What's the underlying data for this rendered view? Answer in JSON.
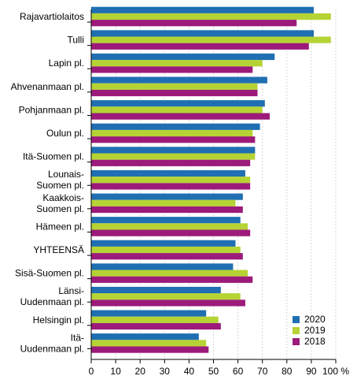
{
  "chart_data": {
    "type": "bar",
    "orientation": "horizontal",
    "categories": [
      [
        "Rajavartiolaitos"
      ],
      [
        "Tulli"
      ],
      [
        "Lapin pl."
      ],
      [
        "Ahvenanmaan pl."
      ],
      [
        "Pohjanmaan pl."
      ],
      [
        "Oulun pl."
      ],
      [
        "Itä-Suomen pl."
      ],
      [
        "Lounais-",
        "Suomen pl."
      ],
      [
        "Kaakkois-",
        "Suomen pl."
      ],
      [
        "Hämeen pl."
      ],
      [
        "YHTEENSÄ"
      ],
      [
        "Sisä-Suomen pl."
      ],
      [
        "Länsi-",
        "Uudenmaan pl."
      ],
      [
        "Helsingin pl."
      ],
      [
        "Itä-",
        "Uudenmaan pl."
      ]
    ],
    "series": [
      {
        "name": "2020",
        "color": "#1f6fb2",
        "values": [
          91,
          91,
          75,
          72,
          71,
          69,
          67,
          63,
          62,
          61,
          59,
          58,
          53,
          47,
          44
        ]
      },
      {
        "name": "2019",
        "color": "#b5d334",
        "values": [
          98,
          98,
          70,
          68,
          70,
          66,
          67,
          65,
          59,
          64,
          61,
          64,
          61,
          52,
          47
        ]
      },
      {
        "name": "2018",
        "color": "#9c1b7a",
        "values": [
          84,
          89,
          66,
          68,
          73,
          67,
          65,
          65,
          62,
          65,
          62,
          66,
          63,
          53,
          48
        ]
      }
    ],
    "x_ticks": [
      "0",
      "10",
      "20",
      "30",
      "40",
      "50",
      "60",
      "70",
      "80",
      "90",
      "100 %"
    ],
    "xlim": [
      0,
      100
    ],
    "grid": "vertical",
    "legend_position": "bottom-right"
  }
}
